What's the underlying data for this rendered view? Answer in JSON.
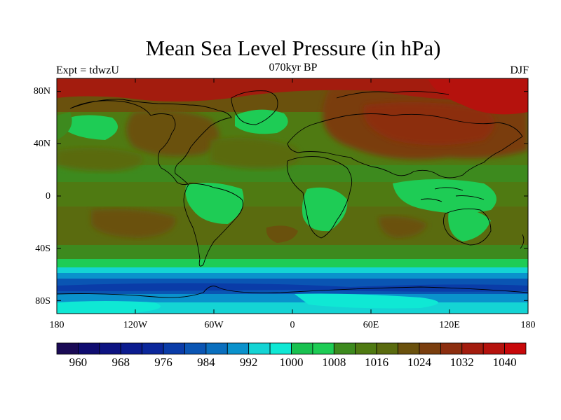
{
  "map": {
    "title": "Mean Sea Level Pressure (in hPa)",
    "experiment_label": "Expt = tdwzU",
    "period_label": "070kyr BP",
    "season_label": "DJF",
    "lat_labels": [
      "80N",
      "40N",
      "0",
      "40S",
      "80S"
    ],
    "lon_labels": [
      "180",
      "120W",
      "60W",
      "0",
      "60E",
      "120E",
      "180"
    ],
    "colorbar_labels": [
      "960",
      "968",
      "976",
      "984",
      "992",
      "1000",
      "1008",
      "1016",
      "1024",
      "1032",
      "1040"
    ],
    "colorbar_colors": [
      "#1a0a55",
      "#0f0c70",
      "#0d1382",
      "#0c1c8f",
      "#0b279b",
      "#0a3ca8",
      "#0a55b3",
      "#0a6fbe",
      "#0a92cc",
      "#14d4d4",
      "#0fe8d4",
      "#19c150",
      "#1ecc55",
      "#3d8a1e",
      "#4f7a12",
      "#5a6b0f",
      "#6a510d",
      "#7a3e0e",
      "#8c2e0f",
      "#a31c0e",
      "#b5120d",
      "#c8080a"
    ],
    "colorbar_range": [
      956,
      1044
    ],
    "colorbar_step": 4
  }
}
